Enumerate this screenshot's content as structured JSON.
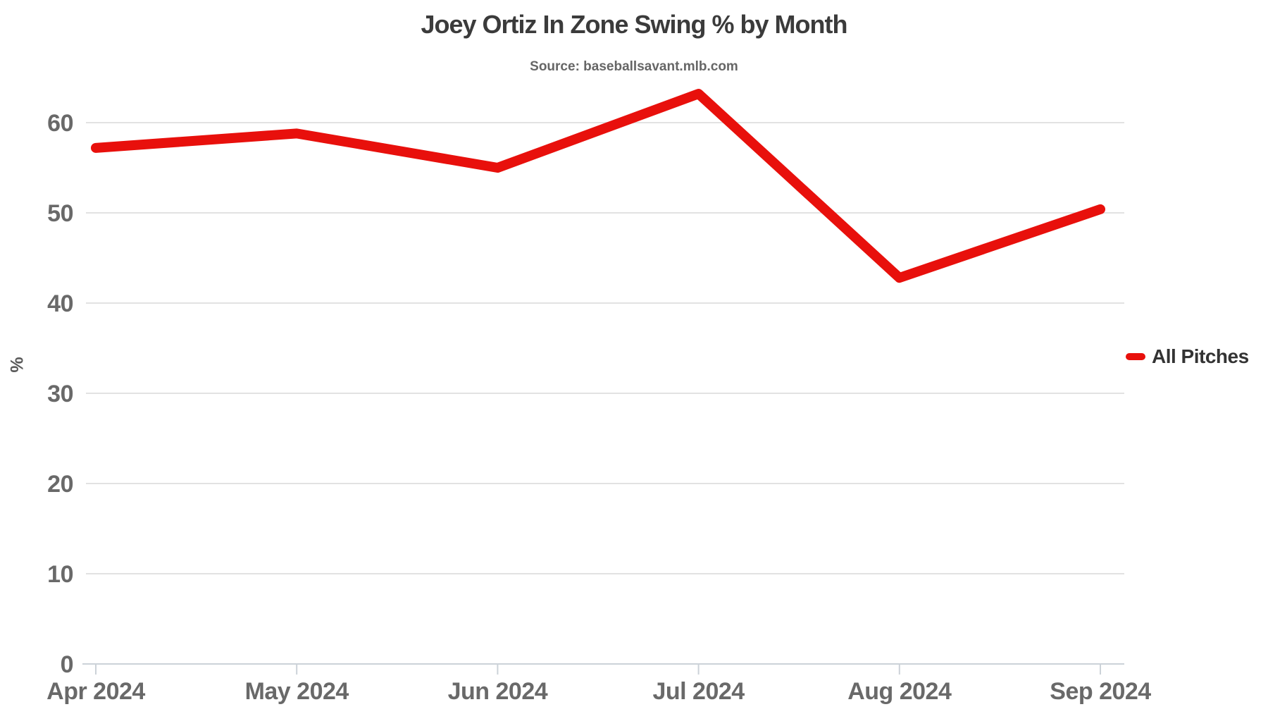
{
  "chart_data": {
    "type": "line",
    "title": "Joey Ortiz In Zone Swing % by Month",
    "subtitle": "Source: baseballsavant.mlb.com",
    "ylabel": "%",
    "xlabel": "",
    "categories": [
      "Apr 2024",
      "May 2024",
      "Jun 2024",
      "Jul 2024",
      "Aug 2024",
      "Sep 2024"
    ],
    "series": [
      {
        "name": "All Pitches",
        "color": "#e8100c",
        "values": [
          57.2,
          58.8,
          55.0,
          63.2,
          42.8,
          50.4
        ]
      }
    ],
    "yticks": [
      0,
      10,
      20,
      30,
      40,
      50,
      60
    ],
    "ylim": [
      0,
      65
    ],
    "grid": true,
    "legend_position": "right-middle",
    "colors": {
      "line": "#e8100c",
      "title_text": "#3b3b3b",
      "subtitle_text": "#666666",
      "tick_label": "#696969",
      "gridline": "#e2e2e2",
      "axis_line": "#ccd2d8",
      "background": "#ffffff"
    }
  }
}
